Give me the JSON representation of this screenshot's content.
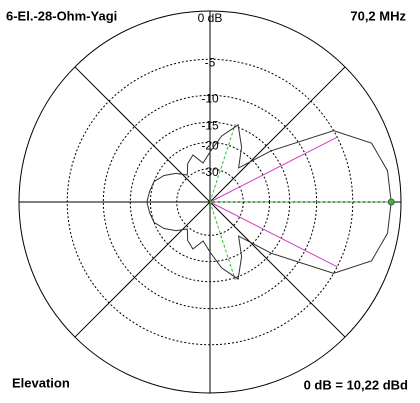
{
  "chart_data": {
    "type": "polar",
    "title": "6-El.-28-Ohm-Yagi",
    "subtitle": "70,2 MHz",
    "view_label": "Elevation",
    "reference_label": "0 dB = 10,22 dBd",
    "r_scale": "arrl",
    "rticks": [
      {
        "value": 0,
        "label": "0 dB"
      },
      -5,
      -10,
      -15,
      -20,
      -30
    ],
    "spoke_angles": [
      0,
      45,
      90,
      135,
      180,
      225,
      270,
      315
    ],
    "angles": [
      0,
      10,
      20,
      30,
      40,
      50,
      60,
      70,
      80,
      90,
      100,
      110,
      120,
      130,
      140,
      150,
      160,
      170,
      180,
      190,
      200,
      210,
      220,
      230,
      240,
      250,
      260,
      270,
      280,
      290,
      300,
      310,
      320,
      330,
      340,
      350
    ],
    "series": [
      {
        "color": "#303030",
        "values": [
          -0.9,
          -1.0,
          -1.8,
          -5,
          -15,
          -25,
          -19,
          -14.5,
          -18,
          -23,
          -27,
          -23,
          -25,
          -29,
          -25,
          -22,
          -20,
          -19.5,
          -19,
          -19.5,
          -20,
          -22,
          -25,
          -29,
          -25,
          -23,
          -27,
          -23,
          -18,
          -14.5,
          -19,
          -25,
          -15,
          -5,
          -1.8,
          -1.0
        ]
      }
    ],
    "guides": [
      {
        "color": "#d040c0",
        "angles": [
          27,
          333
        ]
      },
      {
        "color": "#30c030",
        "angles": [
          0,
          72,
          288
        ]
      }
    ]
  }
}
